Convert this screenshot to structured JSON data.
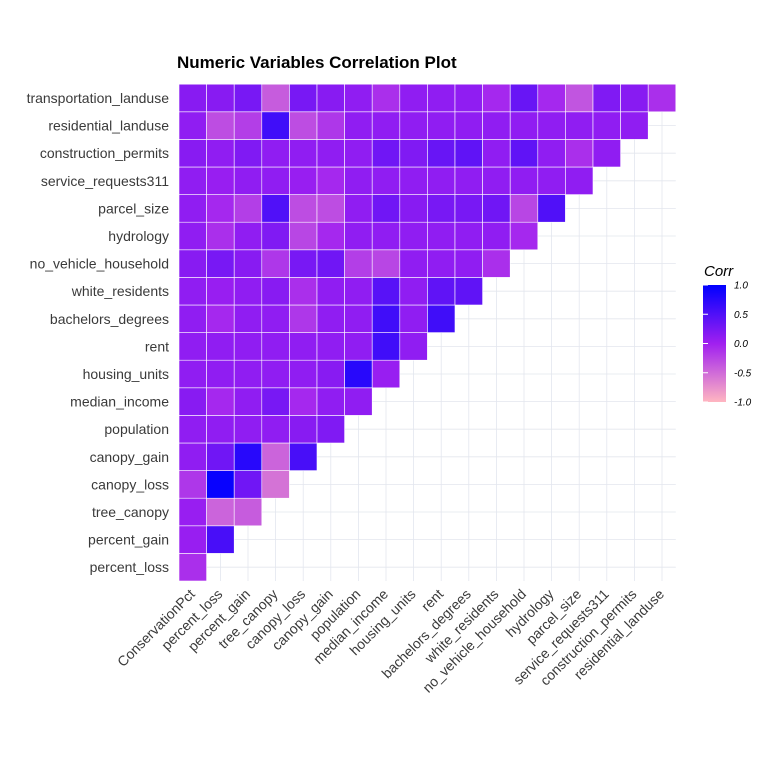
{
  "chart_data": {
    "type": "heatmap",
    "title": "Numeric Variables Correlation Plot",
    "x_labels": [
      "ConservationPct",
      "percent_loss",
      "percent_gain",
      "tree_canopy",
      "canopy_loss",
      "canopy_gain",
      "population",
      "median_income",
      "housing_units",
      "rent",
      "bachelors_degrees",
      "white_residents",
      "no_vehicle_household",
      "hydrology",
      "parcel_size",
      "service_requests311",
      "construction_permits",
      "residential_landuse"
    ],
    "y_labels": [
      "percent_loss",
      "percent_gain",
      "tree_canopy",
      "canopy_loss",
      "canopy_gain",
      "population",
      "median_income",
      "housing_units",
      "rent",
      "bachelors_degrees",
      "white_residents",
      "no_vehicle_household",
      "hydrology",
      "parcel_size",
      "service_requests311",
      "construction_permits",
      "residential_landuse",
      "transportation_landuse"
    ],
    "values": [
      [
        -0.1
      ],
      [
        0.05,
        0.55
      ],
      [
        0.05,
        -0.45,
        -0.4
      ],
      [
        -0.15,
        0.95,
        0.3,
        -0.55
      ],
      [
        0.1,
        0.3,
        0.75,
        -0.45,
        0.55
      ],
      [
        0.1,
        0.1,
        0.1,
        0.1,
        0.15,
        0.2
      ],
      [
        0.15,
        -0.05,
        0.1,
        0.25,
        -0.05,
        0.1,
        0.1
      ],
      [
        0.1,
        0.1,
        0.1,
        0.1,
        0.1,
        0.15,
        0.75,
        0.05
      ],
      [
        0.1,
        0.1,
        0.1,
        0.1,
        0.1,
        0.1,
        0.1,
        0.6,
        0.1
      ],
      [
        0.1,
        -0.05,
        0.1,
        0.1,
        -0.15,
        0.1,
        0.1,
        0.6,
        0.1,
        0.6
      ],
      [
        0.1,
        0.05,
        0.1,
        0.15,
        -0.1,
        0.1,
        0.1,
        0.45,
        0.1,
        0.4,
        0.4
      ],
      [
        0.15,
        0.25,
        0.15,
        -0.15,
        0.25,
        0.3,
        -0.2,
        -0.25,
        0.1,
        0.1,
        0.1,
        -0.1
      ],
      [
        0.1,
        -0.1,
        0.1,
        0.2,
        -0.25,
        -0.05,
        0.1,
        0.1,
        0.1,
        0.1,
        0.1,
        0.1,
        -0.05
      ],
      [
        0.1,
        -0.05,
        -0.2,
        0.5,
        -0.3,
        -0.3,
        0.1,
        0.3,
        0.15,
        0.25,
        0.25,
        0.3,
        -0.25,
        0.5
      ],
      [
        0.1,
        0.05,
        0.1,
        0.1,
        0.05,
        -0.05,
        0.1,
        0.1,
        0.1,
        0.1,
        0.1,
        0.1,
        0.1,
        0.1,
        0.1
      ],
      [
        0.15,
        0.1,
        0.2,
        0.1,
        0.1,
        0.1,
        0.1,
        0.3,
        0.2,
        0.35,
        0.4,
        0.1,
        0.4,
        0.1,
        -0.1,
        0.1
      ],
      [
        0.1,
        -0.3,
        -0.2,
        0.6,
        -0.3,
        -0.15,
        0.1,
        0.1,
        0.1,
        0.1,
        0.1,
        0.1,
        0.1,
        0.1,
        0.1,
        0.1,
        0.1
      ],
      [
        0.15,
        0.15,
        0.25,
        -0.4,
        0.25,
        0.15,
        0.1,
        -0.1,
        0.1,
        0.1,
        0.1,
        -0.05,
        0.35,
        -0.05,
        -0.35,
        0.2,
        0.15,
        -0.1
      ]
    ],
    "legend": {
      "title": "Corr",
      "ticks": [
        "1.0",
        "0.5",
        "0.0",
        "-0.5",
        "-1.0"
      ],
      "range": [
        -1.0,
        1.0
      ],
      "colors": {
        "low": "#FFB6C1",
        "mid": "#A020F0",
        "high": "#0000FF"
      }
    },
    "grid": true,
    "legend_position": "right"
  }
}
